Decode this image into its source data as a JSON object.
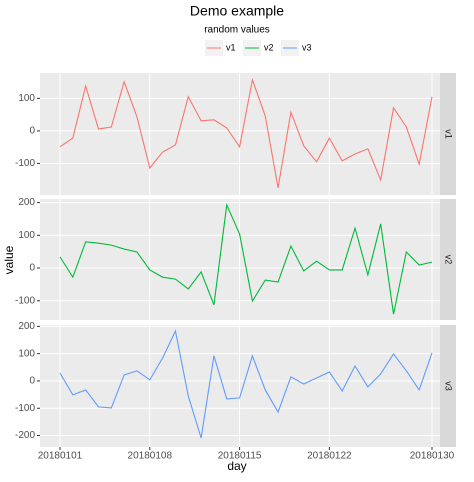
{
  "chart_data": {
    "type": "line",
    "title": "Demo example",
    "legend_title": "random values",
    "x_label": "day",
    "y_label": "value",
    "grid": true,
    "categories": [
      "20180101",
      null,
      null,
      null,
      null,
      null,
      null,
      "20180108",
      null,
      null,
      null,
      null,
      null,
      null,
      "20180115",
      null,
      null,
      null,
      null,
      null,
      null,
      "20180122",
      null,
      null,
      null,
      null,
      null,
      null,
      null,
      "20180130"
    ],
    "series": [
      {
        "name": "v1",
        "color": "#F8766D",
        "ylim": [
          -197,
          178
        ],
        "yticks": [
          -100,
          0,
          100
        ],
        "values": [
          -49,
          -22,
          138,
          6,
          12,
          151,
          43,
          -114,
          -65,
          -43,
          105,
          31,
          34,
          9,
          -49,
          157,
          46,
          -175,
          58,
          -46,
          -95,
          -22,
          -92,
          -71,
          -55,
          -151,
          71,
          12,
          -102,
          105
        ]
      },
      {
        "name": "v2",
        "color": "#00BA38",
        "ylim": [
          -159,
          211
        ],
        "yticks": [
          -100,
          0,
          100,
          200
        ],
        "values": [
          34,
          -28,
          80,
          76,
          70,
          58,
          49,
          -6,
          -28,
          -34,
          -64,
          -12,
          -113,
          193,
          104,
          -101,
          -37,
          -43,
          67,
          -9,
          21,
          -6,
          -6,
          122,
          -21,
          135,
          -141,
          49,
          9,
          18
        ]
      },
      {
        "name": "v3",
        "color": "#619CFF",
        "ylim": [
          -242,
          205
        ],
        "yticks": [
          -200,
          -100,
          0,
          100,
          200
        ],
        "values": [
          29,
          -51,
          -33,
          -95,
          -99,
          22,
          37,
          4,
          84,
          183,
          -55,
          -209,
          92,
          -66,
          -62,
          92,
          -33,
          -114,
          15,
          -11,
          11,
          33,
          -37,
          55,
          -22,
          26,
          99,
          37,
          -33,
          103
        ]
      }
    ]
  }
}
